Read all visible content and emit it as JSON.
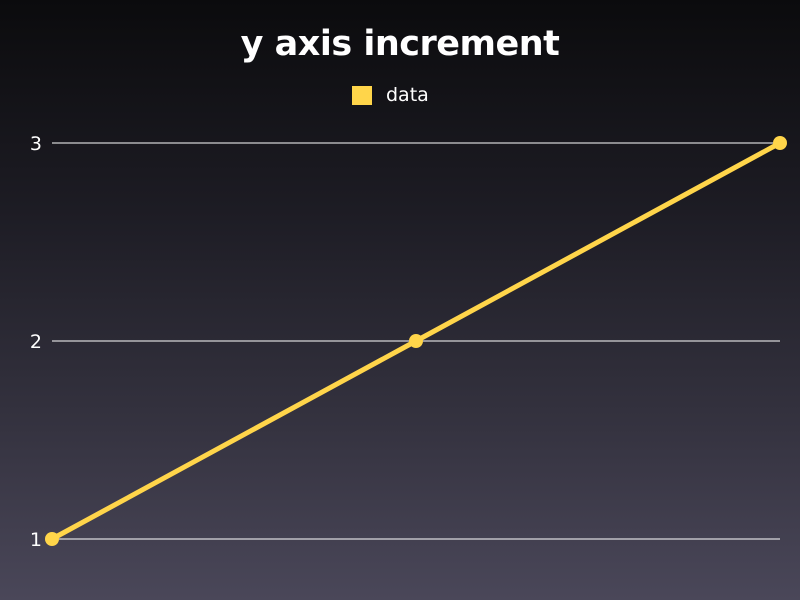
{
  "chart_data": {
    "type": "line",
    "title": "y axis increment",
    "x": [
      1,
      2,
      3
    ],
    "series": [
      {
        "name": "data",
        "values": [
          1,
          2,
          3
        ],
        "color": "#ffd54a"
      }
    ],
    "ylim": [
      1,
      3
    ],
    "yticks": [
      1,
      2,
      3
    ],
    "yticklabels": [
      "1",
      "2",
      "3"
    ],
    "xlabel": "",
    "ylabel": "",
    "grid": true,
    "legend": "top-center"
  },
  "colors": {
    "grid": "#ffffff",
    "text": "#ffffff"
  }
}
